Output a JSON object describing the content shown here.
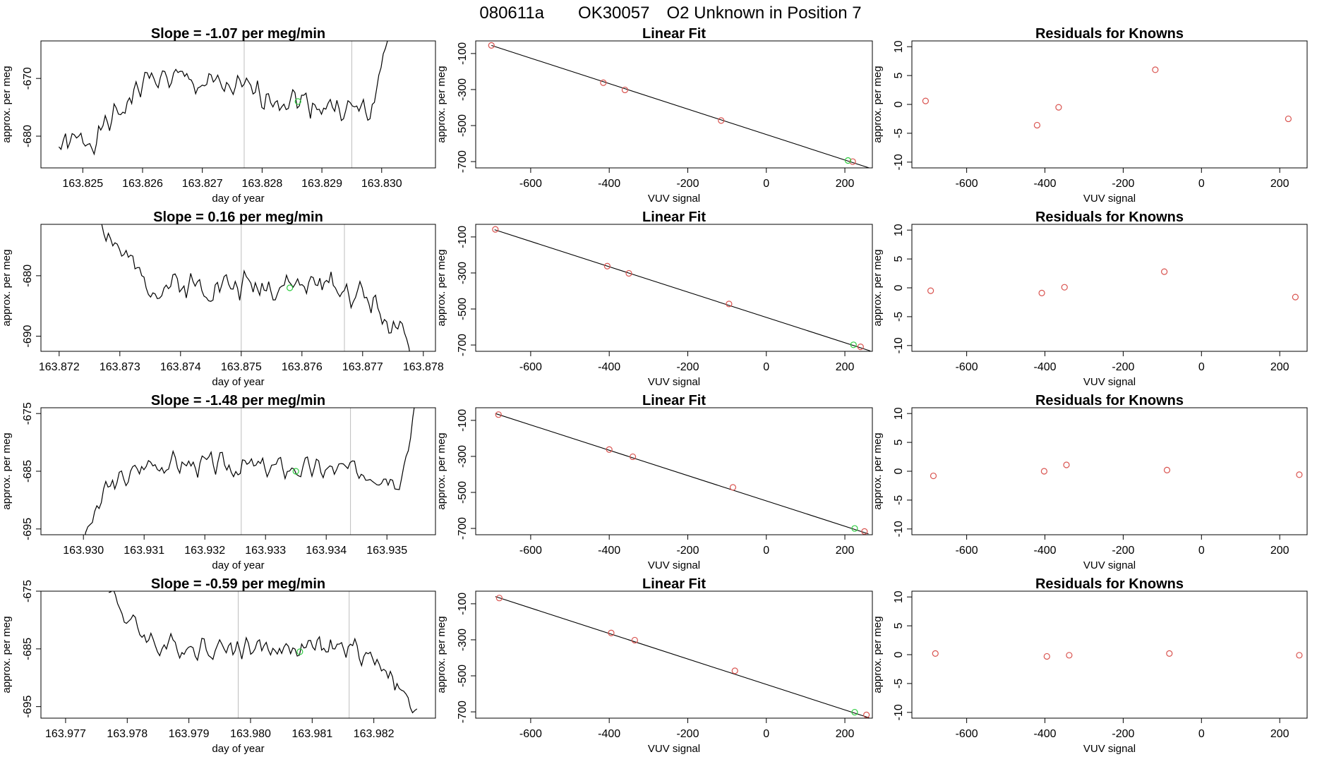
{
  "figure": {
    "title_parts": [
      "080611a",
      "OK30057",
      "O2 Unknown in Position  7"
    ]
  },
  "colors": {
    "line": "#000000",
    "known_point": "#d9534f",
    "unknown_point": "#2ecc40",
    "vline": "#bdbdbd"
  },
  "chart_data": [
    {
      "type": "line",
      "row": 0,
      "title": "Slope =  -1.07  per meg/min",
      "xlabel": "day of year",
      "ylabel": "approx. per meg",
      "xlim": [
        163.8243,
        163.8309
      ],
      "ylim": [
        -685.5,
        -663.5
      ],
      "xticks": [
        163.825,
        163.826,
        163.827,
        163.828,
        163.829,
        163.83
      ],
      "xtick_labels": [
        "163.825",
        "163.826",
        "163.827",
        "163.828",
        "163.829",
        "163.830"
      ],
      "yticks": [
        -670,
        -680
      ],
      "ytick_labels": [
        "-670",
        "-680"
      ],
      "vlines": [
        163.8277,
        163.8295
      ],
      "highlight": {
        "x": 163.8286,
        "y": -674
      },
      "series_profile": {
        "x_start": 163.8246,
        "x_end": 163.8301,
        "n": 150,
        "seed": 1,
        "knots": [
          [
            0,
            -682
          ],
          [
            0.12,
            -680
          ],
          [
            0.28,
            -669.5
          ],
          [
            0.85,
            -675
          ],
          [
            0.95,
            -676
          ],
          [
            1.0,
            -663
          ]
        ],
        "amplitude": 3,
        "clip_start": true
      }
    },
    {
      "type": "line",
      "row": 1,
      "title": "Slope =  0.16  per meg/min",
      "xlabel": "day of year",
      "ylabel": "approx. per meg",
      "xlim": [
        163.8717,
        163.8782
      ],
      "ylim": [
        -692.5,
        -671.5
      ],
      "xticks": [
        163.872,
        163.873,
        163.874,
        163.875,
        163.876,
        163.877,
        163.878
      ],
      "xtick_labels": [
        "163.872",
        "163.873",
        "163.874",
        "163.875",
        "163.876",
        "163.877",
        "163.878"
      ],
      "yticks": [
        -680,
        -690
      ],
      "ytick_labels": [
        "-680",
        "-690"
      ],
      "vlines": [
        163.875,
        163.8767
      ],
      "highlight": {
        "x": 163.8758,
        "y": -682
      },
      "series_profile": {
        "x_start": 163.8727,
        "x_end": 163.8778,
        "n": 140,
        "seed": 2,
        "knots": [
          [
            0,
            -671
          ],
          [
            0.06,
            -676
          ],
          [
            0.14,
            -681.5
          ],
          [
            0.75,
            -681.5
          ],
          [
            0.88,
            -684
          ],
          [
            1.0,
            -693
          ]
        ],
        "amplitude": 3,
        "clip_start": true
      }
    },
    {
      "type": "line",
      "row": 2,
      "title": "Slope =  -1.48  per meg/min",
      "xlabel": "day of year",
      "ylabel": "approx. per meg",
      "xlim": [
        163.9293,
        163.9358
      ],
      "ylim": [
        -696,
        -674
      ],
      "xticks": [
        163.93,
        163.931,
        163.932,
        163.933,
        163.934,
        163.935
      ],
      "xtick_labels": [
        "163.930",
        "163.931",
        "163.932",
        "163.933",
        "163.934",
        "163.935"
      ],
      "yticks": [
        -675,
        -685,
        -695
      ],
      "ytick_labels": [
        "-675",
        "-685",
        "-695"
      ],
      "vlines": [
        163.9326,
        163.9344
      ],
      "highlight": {
        "x": 163.9335,
        "y": -685
      },
      "series_profile": {
        "x_start": 163.93,
        "x_end": 163.9355,
        "n": 150,
        "seed": 3,
        "knots": [
          [
            0,
            -697
          ],
          [
            0.07,
            -688
          ],
          [
            0.2,
            -683.5
          ],
          [
            0.85,
            -685
          ],
          [
            0.95,
            -686
          ],
          [
            1.0,
            -673
          ]
        ],
        "amplitude": 2.5,
        "clip_start": true
      }
    },
    {
      "type": "line",
      "row": 3,
      "title": "Slope =  -0.59  per meg/min",
      "xlabel": "day of year",
      "ylabel": "approx. per meg",
      "xlim": [
        163.9766,
        163.983
      ],
      "ylim": [
        -697,
        -675
      ],
      "xticks": [
        163.977,
        163.978,
        163.979,
        163.98,
        163.981,
        163.982
      ],
      "xtick_labels": [
        "163.977",
        "163.978",
        "163.979",
        "163.980",
        "163.981",
        "163.982"
      ],
      "yticks": [
        -675,
        -685,
        -695
      ],
      "ytick_labels": [
        "-675",
        "-685",
        "-695"
      ],
      "vlines": [
        163.9798,
        163.9816
      ],
      "highlight": {
        "x": 163.9808,
        "y": -685.5
      },
      "series_profile": {
        "x_start": 163.9777,
        "x_end": 163.9827,
        "n": 140,
        "seed": 4,
        "knots": [
          [
            0,
            -674
          ],
          [
            0.06,
            -680
          ],
          [
            0.16,
            -684.5
          ],
          [
            0.8,
            -685
          ],
          [
            0.9,
            -688
          ],
          [
            1.0,
            -697
          ]
        ],
        "amplitude": 2.5,
        "clip_start": true
      }
    },
    {
      "type": "scatter",
      "row": 0,
      "title": "Linear Fit",
      "xlabel": "VUV signal",
      "ylabel": "approx. per meg",
      "xlim": [
        -740,
        270
      ],
      "ylim": [
        -735,
        -30
      ],
      "xticks": [
        -600,
        -400,
        -200,
        0,
        200
      ],
      "xtick_labels": [
        "-600",
        "-400",
        "-200",
        "0",
        "200"
      ],
      "yticks": [
        -100,
        -300,
        -500,
        -700
      ],
      "ytick_labels": [
        "-100",
        "-300",
        "-500",
        "-700"
      ],
      "fit_line": [
        [
          -700,
          -55
        ],
        [
          262,
          -735
        ]
      ],
      "known_points": [
        [
          -700,
          -55
        ],
        [
          -415,
          -262
        ],
        [
          -360,
          -302
        ],
        [
          -115,
          -472
        ],
        [
          220,
          -700
        ]
      ],
      "unknown_point": [
        208,
        -694
      ]
    },
    {
      "type": "scatter",
      "row": 1,
      "title": "Linear Fit",
      "xlabel": "VUV signal",
      "ylabel": "approx. per meg",
      "xlim": [
        -740,
        270
      ],
      "ylim": [
        -735,
        -30
      ],
      "xticks": [
        -600,
        -400,
        -200,
        0,
        200
      ],
      "xtick_labels": [
        "-600",
        "-400",
        "-200",
        "0",
        "200"
      ],
      "yticks": [
        -100,
        -300,
        -500,
        -700
      ],
      "ytick_labels": [
        "-100",
        "-300",
        "-500",
        "-700"
      ],
      "fit_line": [
        [
          -692,
          -60
        ],
        [
          265,
          -733
        ]
      ],
      "known_points": [
        [
          -690,
          -58
        ],
        [
          -405,
          -262
        ],
        [
          -350,
          -302
        ],
        [
          -95,
          -472
        ],
        [
          240,
          -710
        ]
      ],
      "unknown_point": [
        222,
        -699
      ]
    },
    {
      "type": "scatter",
      "row": 2,
      "title": "Linear Fit",
      "xlabel": "VUV signal",
      "ylabel": "approx. per meg",
      "xlim": [
        -740,
        270
      ],
      "ylim": [
        -735,
        -30
      ],
      "xticks": [
        -600,
        -400,
        -200,
        0,
        200
      ],
      "xtick_labels": [
        "-600",
        "-400",
        "-200",
        "0",
        "200"
      ],
      "yticks": [
        -100,
        -300,
        -500,
        -700
      ],
      "ytick_labels": [
        "-100",
        "-300",
        "-500",
        "-700"
      ],
      "fit_line": [
        [
          -690,
          -62
        ],
        [
          260,
          -730
        ]
      ],
      "known_points": [
        [
          -682,
          -68
        ],
        [
          -400,
          -262
        ],
        [
          -340,
          -302
        ],
        [
          -85,
          -472
        ],
        [
          250,
          -717
        ]
      ],
      "unknown_point": [
        225,
        -700
      ]
    },
    {
      "type": "scatter",
      "row": 3,
      "title": "Linear Fit",
      "xlabel": "VUV signal",
      "ylabel": "approx. per meg",
      "xlim": [
        -740,
        270
      ],
      "ylim": [
        -735,
        -30
      ],
      "xticks": [
        -600,
        -400,
        -200,
        0,
        200
      ],
      "xtick_labels": [
        "-600",
        "-400",
        "-200",
        "0",
        "200"
      ],
      "yticks": [
        -100,
        -300,
        -500,
        -700
      ],
      "ytick_labels": [
        "-100",
        "-300",
        "-500",
        "-700"
      ],
      "fit_line": [
        [
          -690,
          -60
        ],
        [
          262,
          -733
        ]
      ],
      "known_points": [
        [
          -680,
          -68
        ],
        [
          -395,
          -262
        ],
        [
          -335,
          -302
        ],
        [
          -80,
          -472
        ],
        [
          255,
          -717
        ]
      ],
      "unknown_point": [
        225,
        -702
      ]
    },
    {
      "type": "scatter",
      "row": 0,
      "title": "Residuals for Knowns",
      "xlabel": "VUV signal",
      "ylabel": "approx. per meg",
      "xlim": [
        -740,
        270
      ],
      "ylim": [
        -11,
        11
      ],
      "xticks": [
        -600,
        -400,
        -200,
        0,
        200
      ],
      "xtick_labels": [
        "-600",
        "-400",
        "-200",
        "0",
        "200"
      ],
      "yticks": [
        10,
        5,
        0,
        -5,
        -10
      ],
      "ytick_labels": [
        "10",
        "5",
        "0",
        "-5",
        "-10"
      ],
      "points": [
        [
          -705,
          0.6
        ],
        [
          -420,
          -3.6
        ],
        [
          -365,
          -0.5
        ],
        [
          -118,
          6.0
        ],
        [
          222,
          -2.5
        ]
      ]
    },
    {
      "type": "scatter",
      "row": 1,
      "title": "Residuals for Knowns",
      "xlabel": "VUV signal",
      "ylabel": "approx. per meg",
      "xlim": [
        -740,
        270
      ],
      "ylim": [
        -11,
        11
      ],
      "xticks": [
        -600,
        -400,
        -200,
        0,
        200
      ],
      "xtick_labels": [
        "-600",
        "-400",
        "-200",
        "0",
        "200"
      ],
      "yticks": [
        10,
        5,
        0,
        -5,
        -10
      ],
      "ytick_labels": [
        "10",
        "5",
        "0",
        "-5",
        "-10"
      ],
      "points": [
        [
          -692,
          -0.5
        ],
        [
          -408,
          -0.9
        ],
        [
          -350,
          0.1
        ],
        [
          -95,
          2.8
        ],
        [
          240,
          -1.6
        ]
      ]
    },
    {
      "type": "scatter",
      "row": 2,
      "title": "Residuals for Knowns",
      "xlabel": "VUV signal",
      "ylabel": "approx. per meg",
      "xlim": [
        -740,
        270
      ],
      "ylim": [
        -11,
        11
      ],
      "xticks": [
        -600,
        -400,
        -200,
        0,
        200
      ],
      "xtick_labels": [
        "-600",
        "-400",
        "-200",
        "0",
        "200"
      ],
      "yticks": [
        10,
        5,
        0,
        -5,
        -10
      ],
      "ytick_labels": [
        "10",
        "5",
        "0",
        "-5",
        "-10"
      ],
      "points": [
        [
          -685,
          -0.8
        ],
        [
          -402,
          0.0
        ],
        [
          -345,
          1.1
        ],
        [
          -88,
          0.2
        ],
        [
          250,
          -0.6
        ]
      ]
    },
    {
      "type": "scatter",
      "row": 3,
      "title": "Residuals for Knowns",
      "xlabel": "VUV signal",
      "ylabel": "approx. per meg",
      "xlim": [
        -740,
        270
      ],
      "ylim": [
        -11,
        11
      ],
      "xticks": [
        -600,
        -400,
        -200,
        0,
        200
      ],
      "xtick_labels": [
        "-600",
        "-400",
        "-200",
        "0",
        "200"
      ],
      "yticks": [
        10,
        5,
        0,
        -5,
        -10
      ],
      "ytick_labels": [
        "10",
        "5",
        "0",
        "-5",
        "-10"
      ],
      "points": [
        [
          -680,
          0.2
        ],
        [
          -395,
          -0.3
        ],
        [
          -338,
          -0.1
        ],
        [
          -82,
          0.2
        ],
        [
          250,
          -0.1
        ]
      ]
    }
  ]
}
